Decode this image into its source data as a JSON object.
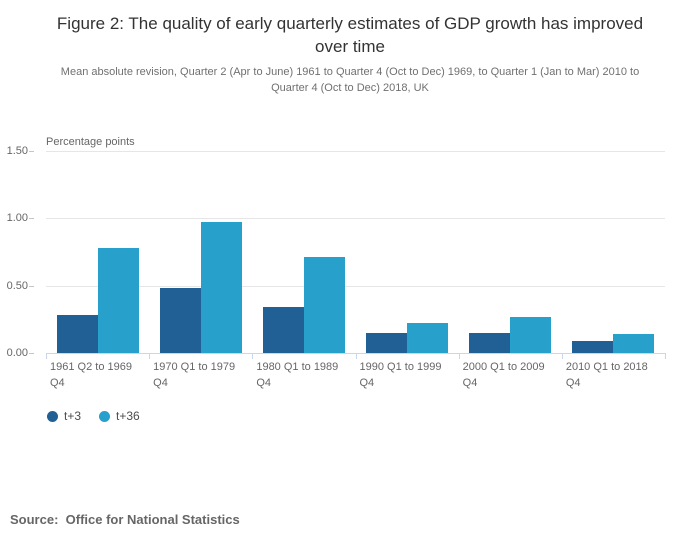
{
  "title": "Figure 2: The quality of early quarterly estimates of GDP growth has improved over time",
  "subtitle": "Mean absolute revision, Quarter 2 (Apr to June) 1961 to Quarter 4 (Oct to Dec) 1969, to Quarter 1 (Jan to Mar) 2010 to Quarter 4 (Oct to Dec) 2018, UK",
  "source": "Source:  Office for National Statistics",
  "chart_data": {
    "type": "bar",
    "title": "Figure 2: The quality of early quarterly estimates of GDP growth has improved over time",
    "ylabel": "Percentage points",
    "xlabel": "",
    "ylim": [
      0,
      1.5
    ],
    "yticks": [
      {
        "value": 0.0,
        "label": "0.00"
      },
      {
        "value": 0.5,
        "label": "0.50"
      },
      {
        "value": 1.0,
        "label": "1.00"
      },
      {
        "value": 1.5,
        "label": "1.50"
      }
    ],
    "categories": [
      "1961 Q2 to 1969 Q4",
      "1970 Q1 to 1979 Q4",
      "1980 Q1 to 1989 Q4",
      "1990 Q1 to 1999 Q4",
      "2000 Q1 to 2009 Q4",
      "2010 Q1 to 2018 Q4"
    ],
    "series": [
      {
        "name": "t+3",
        "color": "#206095",
        "values": [
          0.28,
          0.48,
          0.34,
          0.15,
          0.15,
          0.09
        ]
      },
      {
        "name": "t+36",
        "color": "#27a0cc",
        "values": [
          0.78,
          0.97,
          0.71,
          0.22,
          0.27,
          0.14
        ]
      }
    ],
    "grid": true,
    "grid_color": "#e6e6e6",
    "axis_line_color": "#ccd6eb",
    "legend_position": "bottom-left"
  }
}
